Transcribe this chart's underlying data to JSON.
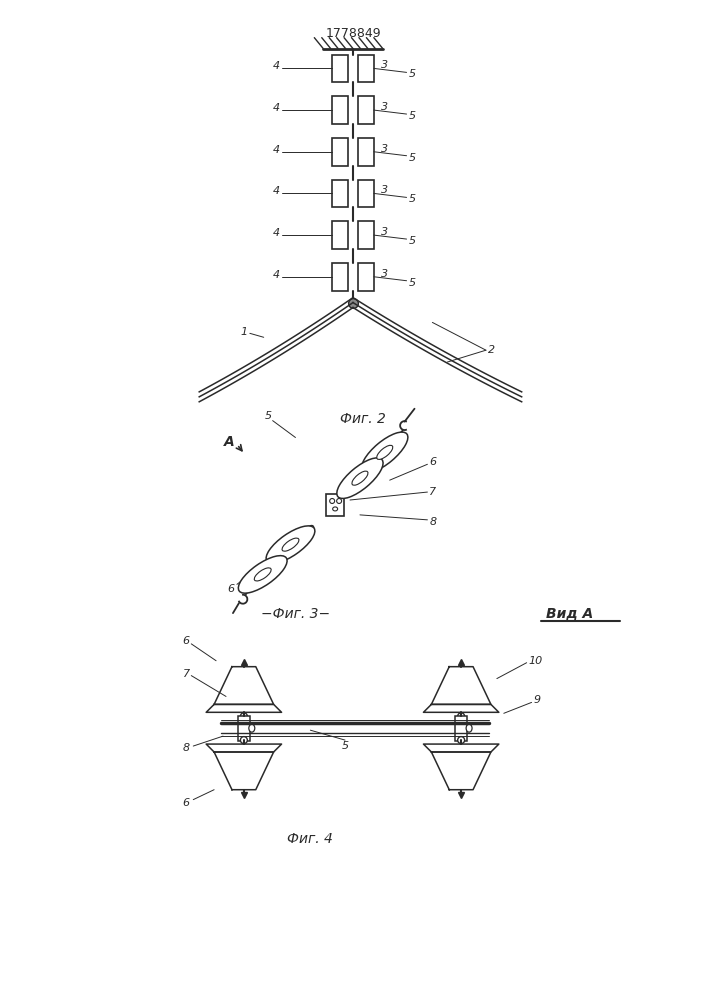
{
  "patent_number": "1778849",
  "bg_color": "#ffffff",
  "line_color": "#2a2a2a",
  "fig2_caption": "Фиг. 2",
  "fig3_caption": "−Фиг. 3−",
  "fig4_caption": "Фиг. 4",
  "vid_a_label": "Вид А"
}
